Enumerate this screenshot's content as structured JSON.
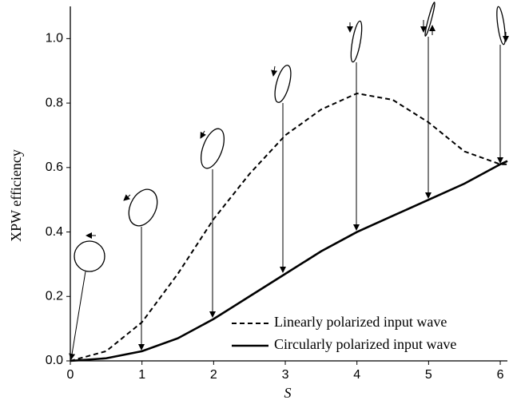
{
  "chart_data": {
    "type": "line",
    "x_label": "S",
    "y_label": "XPW efficiency",
    "x": [
      0,
      0.5,
      1,
      1.5,
      2,
      2.5,
      3,
      3.5,
      4,
      4.5,
      5,
      5.5,
      6,
      6.1
    ],
    "series": [
      {
        "name": "Linearly polarized input wave",
        "color": "#000000",
        "dash": true,
        "values": [
          0,
          0.03,
          0.12,
          0.27,
          0.44,
          0.58,
          0.7,
          0.78,
          0.83,
          0.81,
          0.74,
          0.65,
          0.61,
          0.61
        ]
      },
      {
        "name": "Circularly polarized input wave",
        "color": "#000000",
        "dash": false,
        "values": [
          0,
          0.008,
          0.03,
          0.07,
          0.13,
          0.2,
          0.27,
          0.34,
          0.4,
          0.45,
          0.5,
          0.55,
          0.61,
          0.62
        ]
      }
    ],
    "xlim": [
      0,
      6.1
    ],
    "ylim": [
      0,
      1.1
    ],
    "xticks": [
      0,
      1,
      2,
      3,
      4,
      5,
      6
    ],
    "yticks": [
      {
        "value": 0,
        "label": "0.0"
      },
      {
        "value": 0.2,
        "label": "0.2"
      },
      {
        "value": 0.4,
        "label": "0.4"
      },
      {
        "value": 0.6,
        "label": "0.6"
      },
      {
        "value": 0.8,
        "label": "0.8"
      },
      {
        "value": 1,
        "label": "1.0"
      }
    ],
    "legend": "lower-right"
  }
}
